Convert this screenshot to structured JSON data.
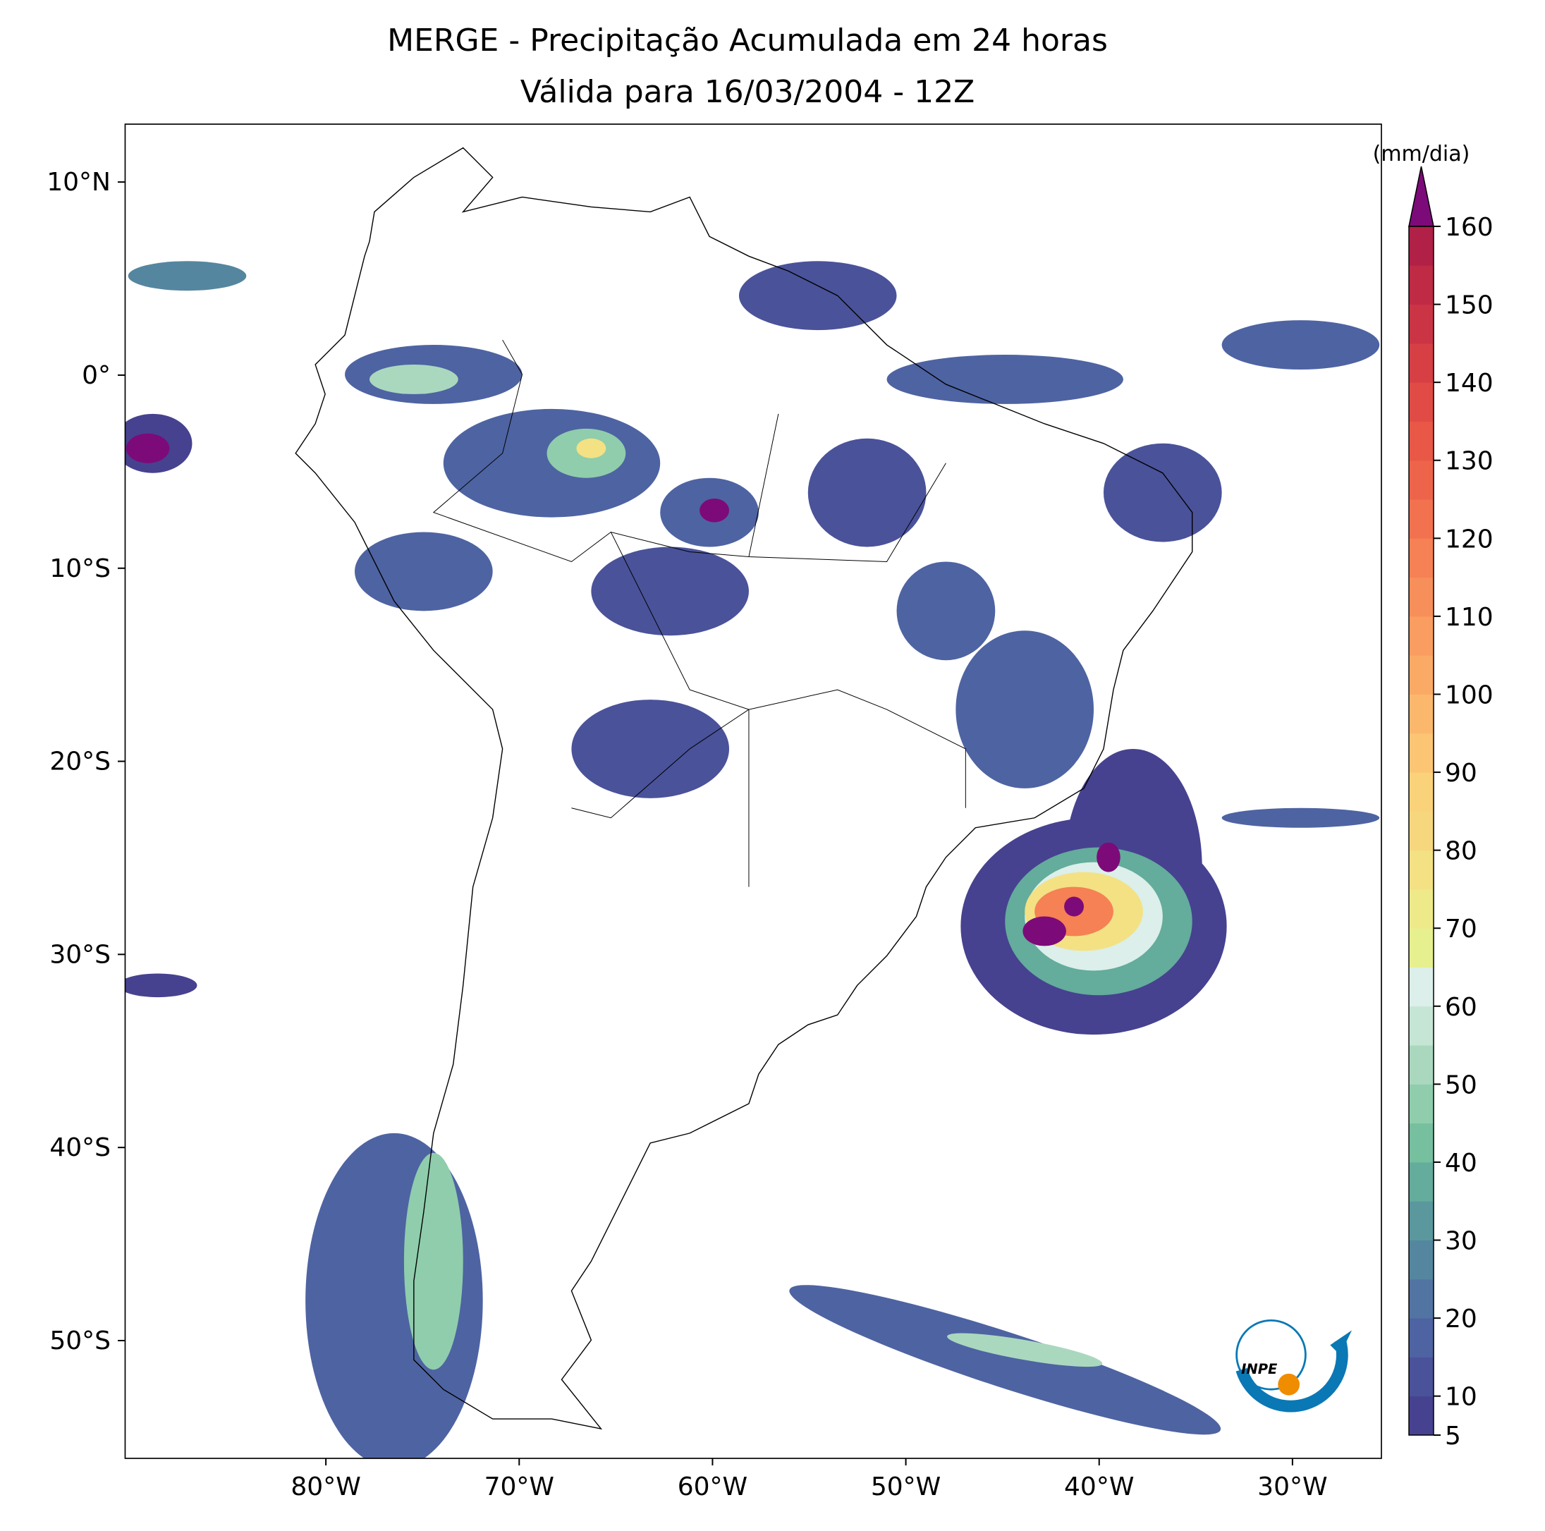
{
  "map_data": {
    "title": "MERGE - Precipitação Acumulada em 24 horas",
    "subtitle": "Válida para 16/03/2004 - 12Z",
    "xlim": [
      -90.4,
      -25.4
    ],
    "ylim": [
      -56.1,
      13
    ],
    "xticks": [
      {
        "value": -80,
        "label": "80°W"
      },
      {
        "value": -70,
        "label": "70°W"
      },
      {
        "value": -60,
        "label": "60°W"
      },
      {
        "value": -50,
        "label": "50°W"
      },
      {
        "value": -40,
        "label": "40°W"
      },
      {
        "value": -30,
        "label": "30°W"
      }
    ],
    "yticks": [
      {
        "value": 10,
        "label": "10°N"
      },
      {
        "value": 0,
        "label": "0°"
      },
      {
        "value": -10,
        "label": "10°S"
      },
      {
        "value": -20,
        "label": "20°S"
      },
      {
        "value": -30,
        "label": "30°S"
      },
      {
        "value": -40,
        "label": "40°S"
      },
      {
        "value": -50,
        "label": "50°S"
      }
    ],
    "colorbar": {
      "label": "(mm/dia)",
      "lim": [
        5,
        160
      ],
      "ticks": [
        5,
        10,
        20,
        30,
        40,
        50,
        60,
        70,
        80,
        90,
        100,
        110,
        120,
        130,
        140,
        150,
        160
      ],
      "colors": [
        "#46428f",
        "#4a529a",
        "#4e63a2",
        "#5274a2",
        "#55869f",
        "#5a989e",
        "#64ac9c",
        "#76bf9f",
        "#8fcdac",
        "#aad8bf",
        "#c5e5d5",
        "#dcefea",
        "#e6f08f",
        "#eeea8a",
        "#f3e184",
        "#f7d77e",
        "#fad27a",
        "#fbc573",
        "#fbb86c",
        "#fbaa66",
        "#f99d60",
        "#f78f5a",
        "#f58154",
        "#f2724f",
        "#ee644b",
        "#e95747",
        "#e14b45",
        "#d63f44",
        "#cb3444",
        "#bf2a45",
        "#b12046"
      ],
      "over_color": "#7d0a79"
    },
    "logo_text": "INPE"
  }
}
